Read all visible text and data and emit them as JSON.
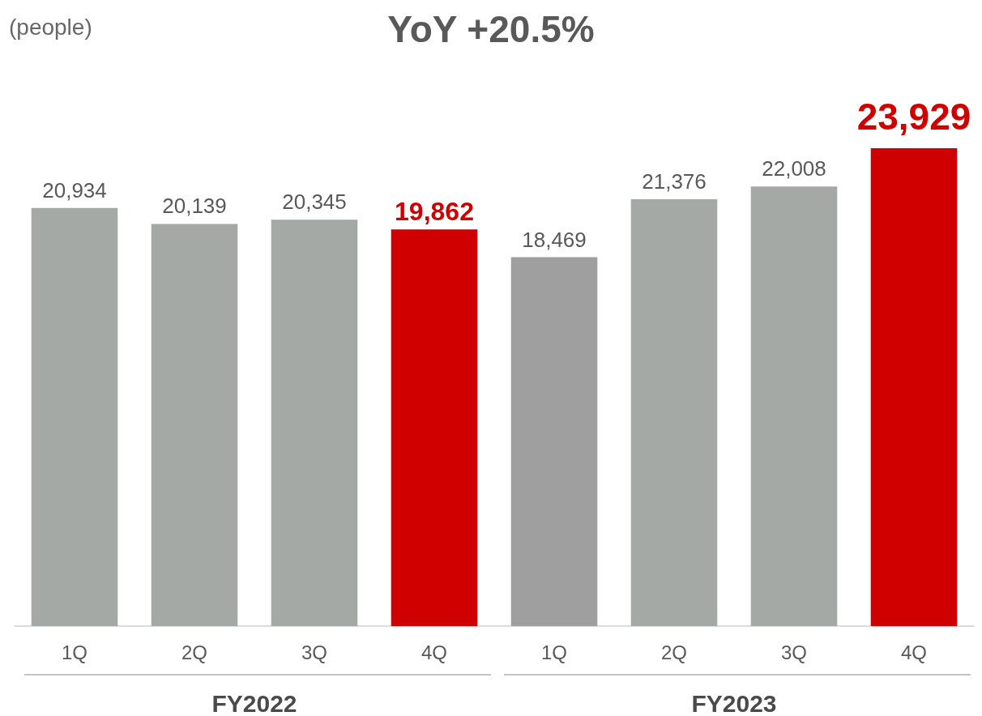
{
  "chart_data": {
    "type": "bar",
    "title": "YoY +20.5%",
    "ylabel": "(people)",
    "categories": [
      "1Q",
      "2Q",
      "3Q",
      "4Q",
      "1Q",
      "2Q",
      "3Q",
      "4Q"
    ],
    "values": [
      20934,
      20139,
      20345,
      19862,
      18469,
      21376,
      22008,
      23929
    ],
    "colors": [
      "#a5a9a6",
      "#a5a9a6",
      "#a5a9a6",
      "#d10000",
      "#9e9f9e",
      "#a5a9a6",
      "#a5a9a6",
      "#d10000"
    ],
    "value_labels": [
      "20,934",
      "20,139",
      "20,345",
      "19,862",
      "18,469",
      "21,376",
      "22,008",
      "23,929"
    ],
    "annotations": [
      "FY2022",
      "FY2023"
    ],
    "tick_labels": "x",
    "grid": false
  }
}
